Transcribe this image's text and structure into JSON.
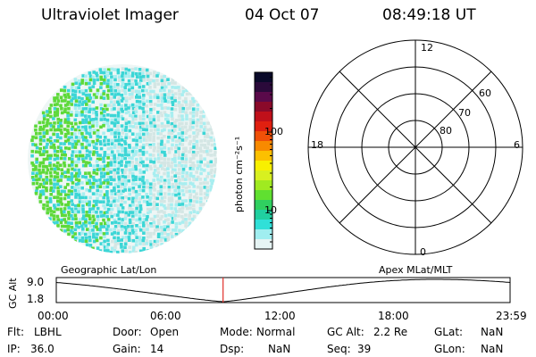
{
  "header": {
    "instrument": "Ultraviolet Imager",
    "date": "04 Oct 07",
    "time": "08:49:18 UT"
  },
  "colorbar": {
    "unit_label": "photon cm⁻²s⁻¹",
    "tick_labels": [
      "100",
      "10"
    ],
    "tick_values": [
      100,
      10
    ],
    "colors": [
      "#0a0a2a",
      "#2a0a3a",
      "#5a0a4a",
      "#8a0a2a",
      "#c0101a",
      "#e02010",
      "#f05008",
      "#f88a00",
      "#fcc000",
      "#f8f000",
      "#d8f020",
      "#a0ea20",
      "#60e030",
      "#30d060",
      "#20d0a0",
      "#30e0d8",
      "#a0eef0",
      "#e6f4f4"
    ]
  },
  "left_image": {
    "caption": "Geographic Lat/Lon",
    "palette": {
      "green": "#5ed93a",
      "cyan": "#3cd6d6",
      "lightcyan": "#a8eef0",
      "grey": "#d4e6e4"
    }
  },
  "polar_plot": {
    "caption": "Apex MLat/MLT",
    "mlt_labels": {
      "top": "12",
      "bottom": "0",
      "left": "18",
      "right": "6"
    },
    "lat_labels": [
      "60",
      "70",
      "80"
    ]
  },
  "altitude_panel": {
    "ylabel": "GC Alt",
    "ytick_labels": [
      "9.0",
      "1.8"
    ],
    "xtick_labels": [
      "00:00",
      "06:00",
      "12:00",
      "18:00",
      "23:59"
    ],
    "marker_color": "#e0302a",
    "marker_hour": 8.82
  },
  "status": {
    "filter": {
      "label": "Flt:",
      "value": "LBHL"
    },
    "ip": {
      "label": "IP:",
      "value": "36.0"
    },
    "door": {
      "label": "Door:",
      "value": "Open"
    },
    "gain": {
      "label": "Gain:",
      "value": "14"
    },
    "mode": {
      "label": "Mode:",
      "value": "Normal"
    },
    "dsp": {
      "label": "Dsp:",
      "value": "NaN"
    },
    "gc_alt": {
      "label": "GC Alt:",
      "value": "2.2 Re"
    },
    "seq": {
      "label": "Seq:",
      "value": "39"
    },
    "glat": {
      "label": "GLat:",
      "value": "NaN"
    },
    "glon": {
      "label": "GLon:",
      "value": "NaN"
    }
  }
}
